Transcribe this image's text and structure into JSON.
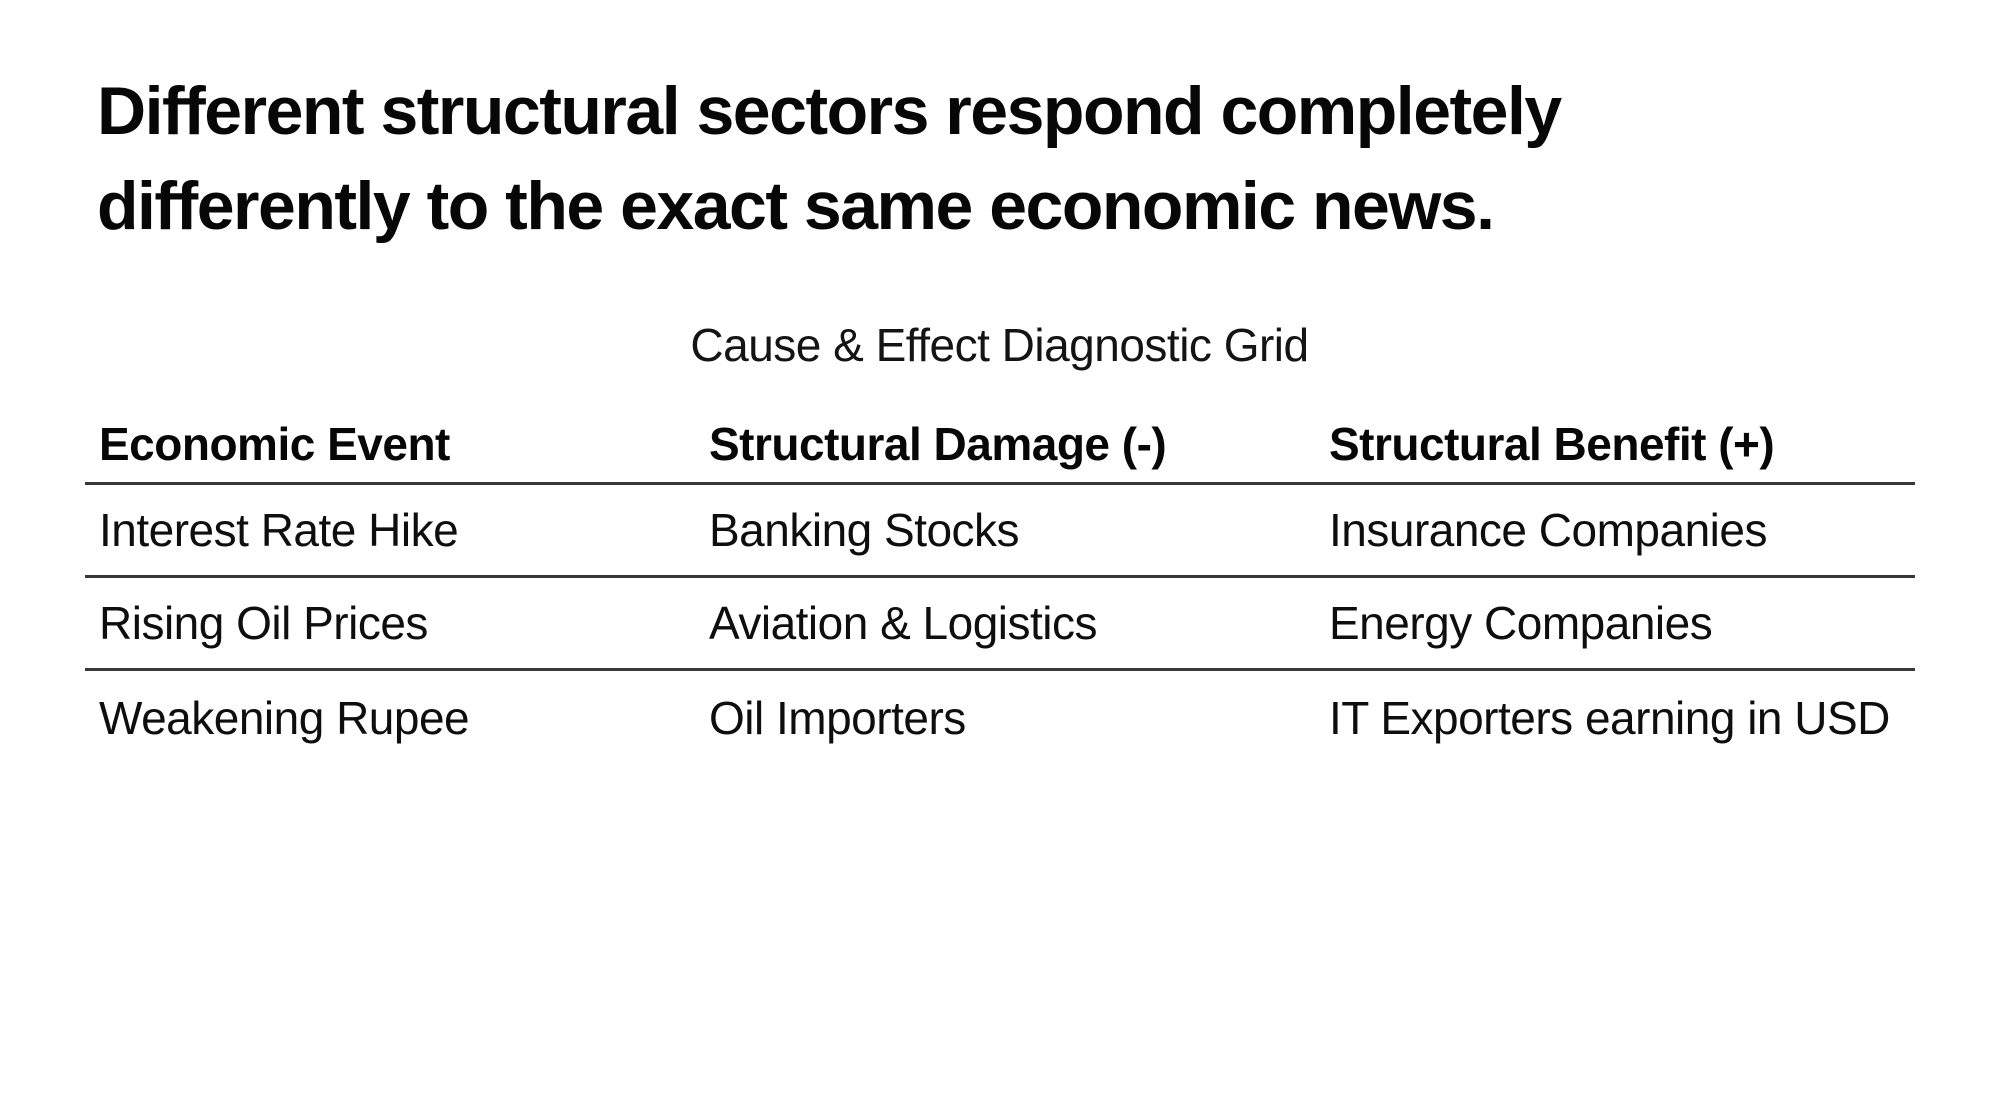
{
  "page": {
    "background": "#ffffff",
    "text_color": "#0e0e0e",
    "divider_color": "#383838"
  },
  "title": {
    "line1": "Different structural sectors respond completely",
    "line2": "differently to the exact same economic news."
  },
  "subtitle": "Cause & Effect Diagnostic Grid",
  "table": {
    "columns": [
      "Economic Event",
      "Structural Damage (-)",
      "Structural Benefit (+)"
    ],
    "rows": [
      [
        "Interest Rate Hike",
        "Banking Stocks",
        "Insurance Companies"
      ],
      [
        "Rising Oil Prices",
        "Aviation & Logistics",
        "Energy Companies"
      ],
      [
        "Weakening Rupee",
        "Oil Importers",
        "IT Exporters earning in USD"
      ]
    ]
  }
}
